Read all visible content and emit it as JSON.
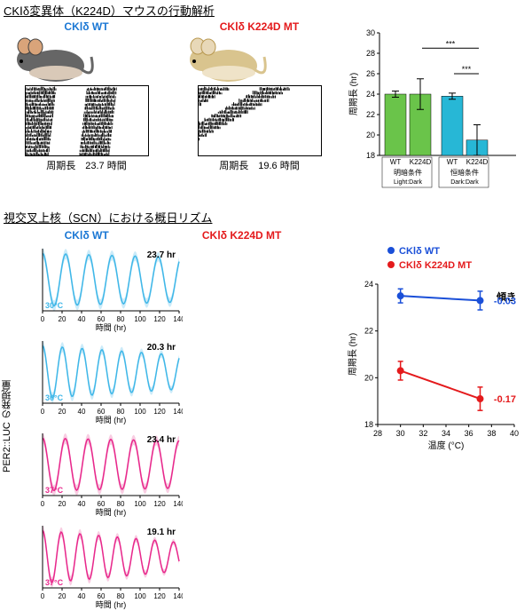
{
  "section1": {
    "title": "CKⅠδ変異体（K224D）マウスの行動解析",
    "wt_label": "CKⅠδ WT",
    "mt_label": "CKⅠδ K224D MT",
    "wt_color": "#1a77d4",
    "mt_color": "#e41a1c",
    "wt_mouse_body": "#666666",
    "mt_mouse_body": "#d9c48e",
    "period_caption_prefix": "周期長",
    "wt_period_hr": "23.7 時間",
    "mt_period_hr": "19.6 時間"
  },
  "bar_chart": {
    "ylabel": "周期長 (hr)",
    "ylim": [
      18,
      30
    ],
    "yticks": [
      18,
      20,
      22,
      24,
      26,
      28,
      30
    ],
    "groups": [
      {
        "name": "明暗条件",
        "name_en": "Light:Dark",
        "bars": [
          {
            "label": "WT",
            "value": 24.0,
            "err": 0.3,
            "color": "#6ac44a"
          },
          {
            "label": "K224D",
            "value": 24.0,
            "err": 1.5,
            "color": "#6ac44a"
          }
        ]
      },
      {
        "name": "恒暗条件",
        "name_en": "Dark:Dark",
        "bars": [
          {
            "label": "WT",
            "value": 23.8,
            "err": 0.3,
            "color": "#27b7d6"
          },
          {
            "label": "K224D",
            "value": 19.5,
            "err": 1.5,
            "color": "#27b7d6"
          }
        ]
      }
    ],
    "sig1": "***",
    "sig2": "***"
  },
  "section2": {
    "title": "視交叉上核（SCN）における概日リズム",
    "wt_label": "CKⅠδ WT",
    "mt_label": "CKⅠδ K224D MT",
    "ylabel": "PER2::LUC の発現量",
    "xlabel": "時間 (hr)",
    "xlim": [
      0,
      140
    ],
    "xticks": [
      0,
      20,
      40,
      60,
      80,
      100,
      120,
      140
    ],
    "traces": [
      {
        "temp": "30°C",
        "period": "23.7 hr",
        "color": "#3fb7e8",
        "band": "#bfe6f7",
        "cycles": 5.9,
        "damp": 0.15
      },
      {
        "temp": "30°C",
        "period": "20.3 hr",
        "color": "#3fb7e8",
        "band": "#bfe6f7",
        "cycles": 6.9,
        "damp": 0.35
      },
      {
        "temp": "37°C",
        "period": "23.4 hr",
        "color": "#e8288c",
        "band": "#f6c0db",
        "cycles": 6.0,
        "damp": 0.1
      },
      {
        "temp": "37°C",
        "period": "19.1 hr",
        "color": "#e8288c",
        "band": "#f6c0db",
        "cycles": 7.3,
        "damp": 0.45
      }
    ]
  },
  "slope_chart": {
    "ylabel": "周期長 (hr)",
    "xlabel": "温度 (°C)",
    "xlim": [
      28,
      40
    ],
    "xticks": [
      28,
      30,
      32,
      34,
      36,
      38,
      40
    ],
    "ylim": [
      18,
      24
    ],
    "yticks": [
      18,
      20,
      22,
      24
    ],
    "wt_label": "CKⅠδ WT",
    "mt_label": "CKⅠδ K224D MT",
    "slope_label": "傾き",
    "series": [
      {
        "color": "#1a4fd8",
        "points": [
          {
            "x": 30,
            "y": 23.5,
            "err": 0.3
          },
          {
            "x": 37,
            "y": 23.3,
            "err": 0.4
          }
        ],
        "slope": "-0.03"
      },
      {
        "color": "#e41a1c",
        "points": [
          {
            "x": 30,
            "y": 20.3,
            "err": 0.4
          },
          {
            "x": 37,
            "y": 19.1,
            "err": 0.5
          }
        ],
        "slope": "-0.17"
      }
    ]
  }
}
